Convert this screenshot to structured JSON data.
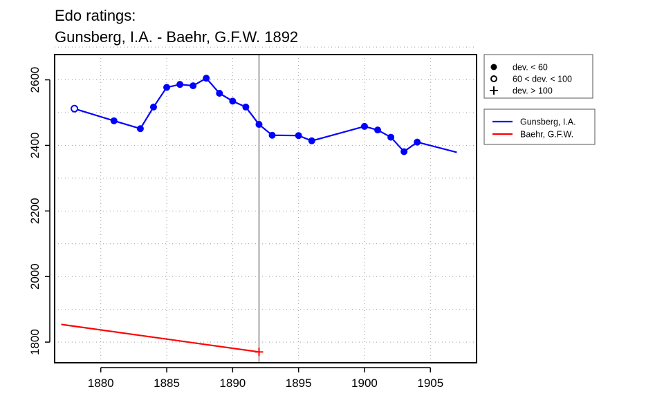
{
  "chart_data": {
    "type": "line",
    "title_line1": "Edo ratings:",
    "title_line2": "Gunsberg, I.A. - Baehr, G.F.W. 1892",
    "xlabel": "",
    "ylabel": "",
    "xlim": [
      1876.5,
      1908.5
    ],
    "ylim": [
      1737,
      2677
    ],
    "x_ticks": [
      1880,
      1885,
      1890,
      1895,
      1900,
      1905
    ],
    "y_ticks": [
      1800,
      2000,
      2200,
      2400,
      2600
    ],
    "grid": true,
    "event_year": 1892,
    "marker_legend": [
      {
        "symbol": "filled-circle",
        "label": "dev. < 60"
      },
      {
        "symbol": "open-circle",
        "label": "60 < dev. < 100"
      },
      {
        "symbol": "plus",
        "label": "dev. > 100"
      }
    ],
    "series": [
      {
        "name": "Gunsberg, I.A.",
        "color": "#0000ff",
        "x": [
          1878,
          1881,
          1883,
          1884,
          1885,
          1886,
          1887,
          1888,
          1889,
          1890,
          1891,
          1892,
          1893,
          1895,
          1896,
          1900,
          1901,
          1902,
          1903,
          1904,
          1907
        ],
        "y": [
          2512,
          2475,
          2451,
          2517,
          2577,
          2586,
          2582,
          2605,
          2559,
          2535,
          2517,
          2464,
          2431,
          2430,
          2414,
          2458,
          2447,
          2425,
          2381,
          2410,
          2379
        ],
        "markers": [
          "open-circle",
          "filled-circle",
          "filled-circle",
          "filled-circle",
          "filled-circle",
          "filled-circle",
          "filled-circle",
          "filled-circle",
          "filled-circle",
          "filled-circle",
          "filled-circle",
          "filled-circle",
          "filled-circle",
          "filled-circle",
          "filled-circle",
          "filled-circle",
          "filled-circle",
          "filled-circle",
          "filled-circle",
          "filled-circle",
          "none"
        ]
      },
      {
        "name": "Baehr, G.F.W.",
        "color": "#ff0000",
        "x": [
          1877,
          1892
        ],
        "y": [
          1854,
          1770
        ],
        "markers": [
          "none",
          "plus"
        ]
      }
    ],
    "legend_placement": "right"
  }
}
